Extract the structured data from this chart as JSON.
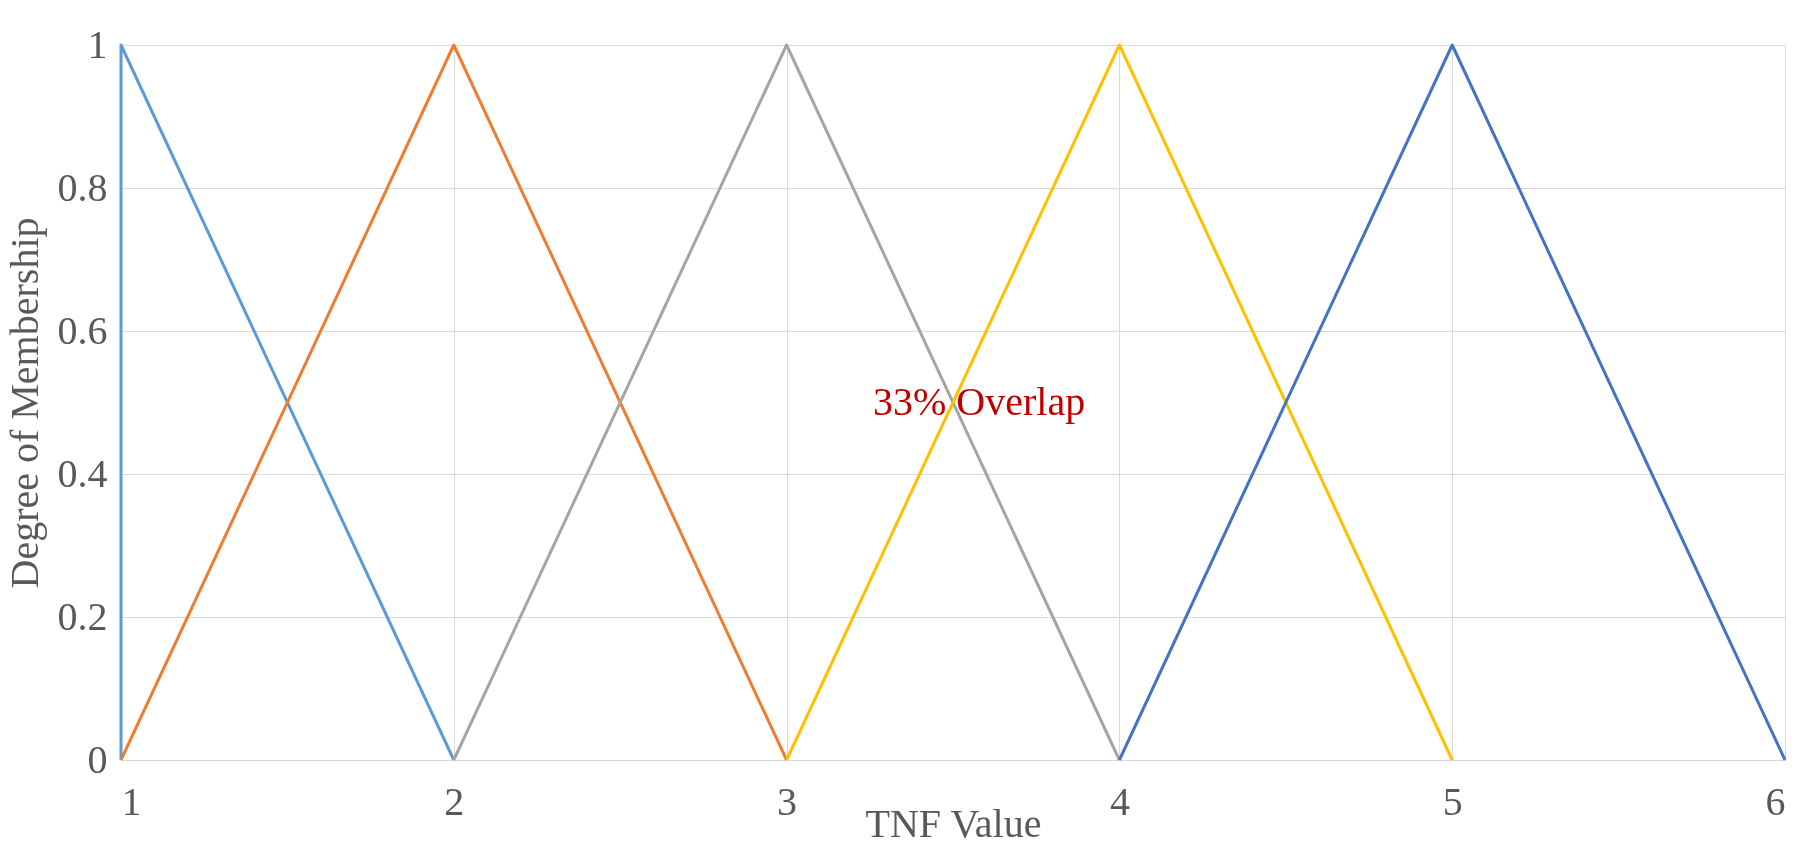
{
  "chart_data": {
    "type": "line",
    "xlabel": "TNF Value",
    "ylabel": "Degree of Membership",
    "xlim": [
      1,
      6
    ],
    "xticks": [
      1,
      2,
      3,
      4,
      5,
      6
    ],
    "ylim": [
      0,
      1
    ],
    "yticks": [
      0,
      0.2,
      0.4,
      0.6,
      0.8,
      1
    ],
    "grid": true,
    "marker": "none",
    "line_style": "solid",
    "series": [
      {
        "color": "#5b9bd5",
        "x": [
          1,
          1,
          2
        ],
        "values": [
          0,
          1,
          0
        ]
      },
      {
        "color": "#ed7d31",
        "x": [
          1,
          2,
          3
        ],
        "values": [
          0,
          1,
          0
        ]
      },
      {
        "color": "#a5a5a5",
        "x": [
          2,
          3,
          4
        ],
        "values": [
          0,
          1,
          0
        ]
      },
      {
        "color": "#ffc000",
        "x": [
          3,
          4,
          5
        ],
        "values": [
          0,
          1,
          0
        ]
      },
      {
        "color": "#4472c4",
        "x": [
          4,
          5,
          6
        ],
        "values": [
          0,
          1,
          0
        ]
      }
    ],
    "annotations": [
      {
        "text": "33% Overlap",
        "x": 3.5,
        "y": 0.5
      }
    ]
  }
}
